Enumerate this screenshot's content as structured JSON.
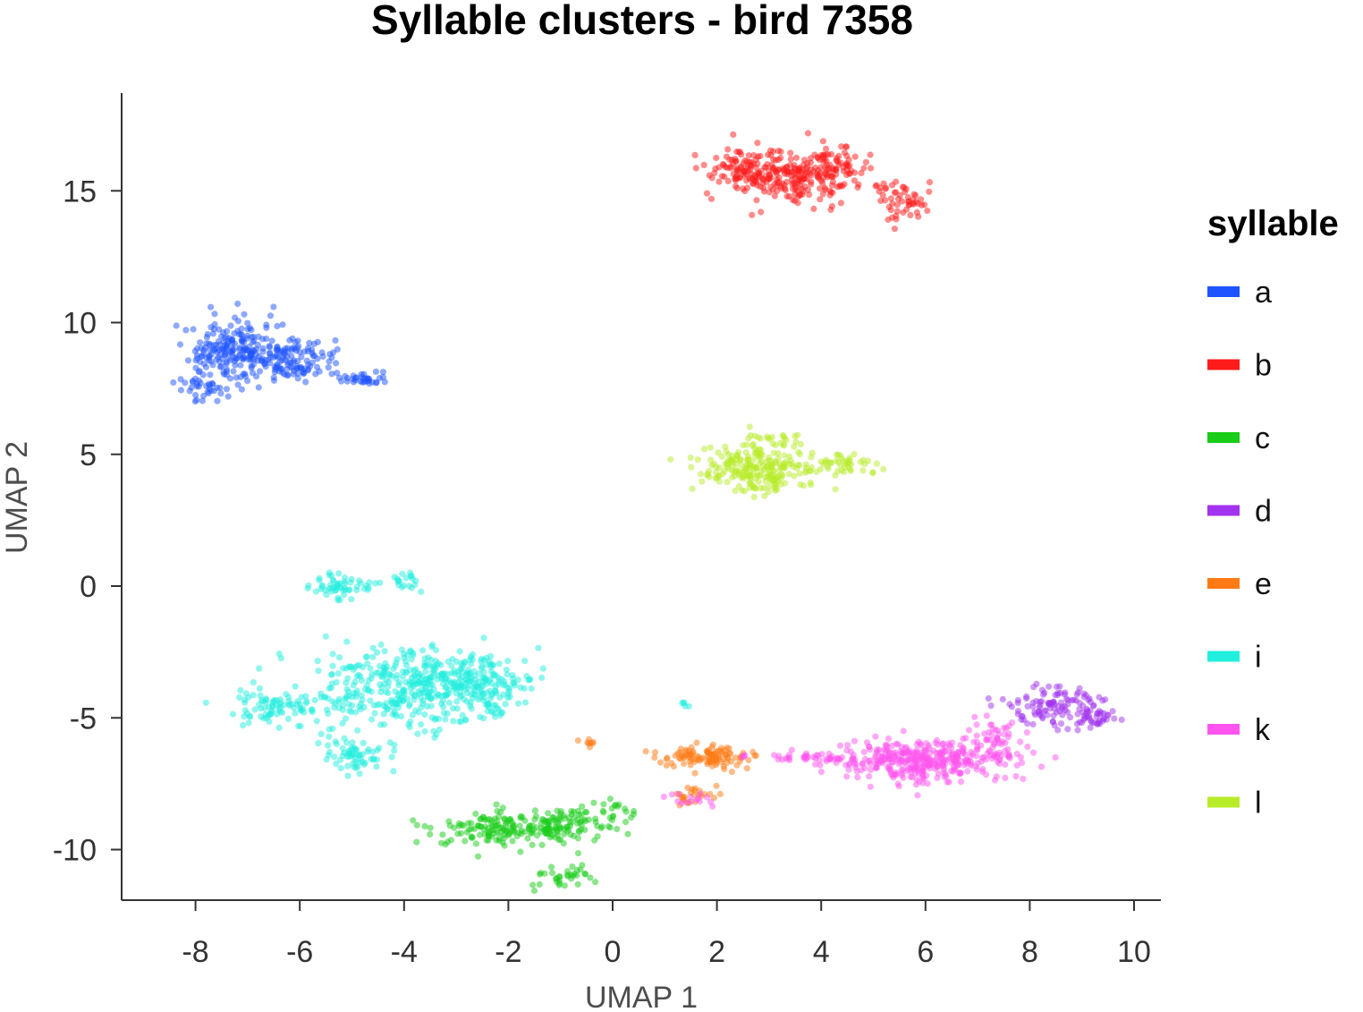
{
  "chart_data": {
    "type": "scatter",
    "title": "Syllable clusters - bird 7358",
    "xlabel": "UMAP 1",
    "ylabel": "UMAP 2",
    "xlim": [
      -9.3,
      10.5
    ],
    "ylim": [
      -12.2,
      18.5
    ],
    "xticks": [
      -8,
      -6,
      -4,
      -2,
      0,
      2,
      4,
      6,
      8,
      10
    ],
    "xtick_labels": [
      "-8",
      "-6",
      "-4",
      "-2",
      "0",
      "2",
      "4",
      "6",
      "8",
      "10"
    ],
    "yticks": [
      15,
      10,
      5,
      0,
      -5,
      -10
    ],
    "ytick_labels": [
      "15",
      "10",
      "5",
      "0",
      "-5",
      "-10"
    ],
    "grid": false,
    "legend": {
      "title": "syllable",
      "placement": "right"
    },
    "series": [
      {
        "name": "a",
        "color": "#1e54ff",
        "clusters": [
          {
            "center": [
              -7.3,
              8.9
            ],
            "spread": [
              0.6,
              0.9
            ],
            "n": 190
          },
          {
            "center": [
              -6.2,
              8.6
            ],
            "spread": [
              0.6,
              0.55
            ],
            "n": 130
          },
          {
            "center": [
              -4.8,
              7.9
            ],
            "spread": [
              0.35,
              0.18
            ],
            "n": 35
          },
          {
            "center": [
              -7.8,
              7.4
            ],
            "spread": [
              0.35,
              0.35
            ],
            "n": 30
          }
        ]
      },
      {
        "name": "b",
        "color": "#ff1a1a",
        "clusters": [
          {
            "center": [
              2.5,
              15.7
            ],
            "spread": [
              0.45,
              0.6
            ],
            "n": 110
          },
          {
            "center": [
              3.5,
              15.5
            ],
            "spread": [
              0.55,
              0.65
            ],
            "n": 170
          },
          {
            "center": [
              4.4,
              15.9
            ],
            "spread": [
              0.4,
              0.5
            ],
            "n": 60
          },
          {
            "center": [
              5.6,
              14.7
            ],
            "spread": [
              0.35,
              0.55
            ],
            "n": 55
          }
        ]
      },
      {
        "name": "c",
        "color": "#18cc18",
        "clusters": [
          {
            "center": [
              -2.0,
              -9.2
            ],
            "spread": [
              0.9,
              0.45
            ],
            "n": 170
          },
          {
            "center": [
              -0.8,
              -9.0
            ],
            "spread": [
              0.5,
              0.45
            ],
            "n": 70
          },
          {
            "center": [
              -0.9,
              -11.0
            ],
            "spread": [
              0.4,
              0.4
            ],
            "n": 35
          },
          {
            "center": [
              0.1,
              -8.5
            ],
            "spread": [
              0.25,
              0.3
            ],
            "n": 15
          }
        ]
      },
      {
        "name": "d",
        "color": "#a233ee",
        "clusters": [
          {
            "center": [
              8.5,
              -4.6
            ],
            "spread": [
              0.6,
              0.55
            ],
            "n": 120
          },
          {
            "center": [
              9.2,
              -5.0
            ],
            "spread": [
              0.25,
              0.3
            ],
            "n": 25
          }
        ]
      },
      {
        "name": "e",
        "color": "#ff7a14",
        "clusters": [
          {
            "center": [
              1.8,
              -6.5
            ],
            "spread": [
              0.65,
              0.3
            ],
            "n": 110
          },
          {
            "center": [
              1.5,
              -8.0
            ],
            "spread": [
              0.3,
              0.3
            ],
            "n": 25
          },
          {
            "center": [
              -0.5,
              -6.0
            ],
            "spread": [
              0.15,
              0.12
            ],
            "n": 8
          }
        ]
      },
      {
        "name": "i",
        "color": "#22eedd",
        "clusters": [
          {
            "center": [
              -3.8,
              -3.8
            ],
            "spread": [
              1.2,
              0.95
            ],
            "n": 400
          },
          {
            "center": [
              -2.4,
              -3.8
            ],
            "spread": [
              0.6,
              0.7
            ],
            "n": 120
          },
          {
            "center": [
              -5.2,
              0.0
            ],
            "spread": [
              0.4,
              0.3
            ],
            "n": 55
          },
          {
            "center": [
              -4.0,
              0.2
            ],
            "spread": [
              0.3,
              0.2
            ],
            "n": 20
          },
          {
            "center": [
              -6.4,
              -4.6
            ],
            "spread": [
              0.75,
              0.5
            ],
            "n": 90
          },
          {
            "center": [
              -4.9,
              -6.4
            ],
            "spread": [
              0.5,
              0.5
            ],
            "n": 70
          },
          {
            "center": [
              1.4,
              -4.5
            ],
            "spread": [
              0.08,
              0.1
            ],
            "n": 5
          }
        ]
      },
      {
        "name": "k",
        "color": "#ff55ee",
        "clusters": [
          {
            "center": [
              6.0,
              -6.6
            ],
            "spread": [
              1.1,
              0.55
            ],
            "n": 380
          },
          {
            "center": [
              7.3,
              -5.8
            ],
            "spread": [
              0.35,
              0.45
            ],
            "n": 50
          },
          {
            "center": [
              3.8,
              -6.5
            ],
            "spread": [
              0.7,
              0.15
            ],
            "n": 40
          },
          {
            "center": [
              1.5,
              -8.1
            ],
            "spread": [
              0.3,
              0.2
            ],
            "n": 15
          }
        ]
      },
      {
        "name": "l",
        "color": "#b8ec28",
        "clusters": [
          {
            "center": [
              2.8,
              4.4
            ],
            "spread": [
              0.75,
              0.6
            ],
            "n": 230
          },
          {
            "center": [
              4.5,
              4.6
            ],
            "spread": [
              0.4,
              0.25
            ],
            "n": 40
          },
          {
            "center": [
              3.0,
              5.6
            ],
            "spread": [
              0.35,
              0.2
            ],
            "n": 25
          }
        ]
      }
    ]
  }
}
